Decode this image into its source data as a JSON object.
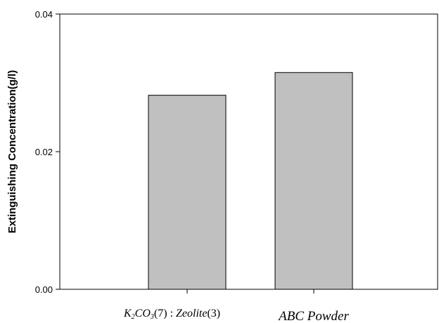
{
  "chart_data": {
    "type": "bar",
    "categories": [
      "K2CO3(7):Zeolite(3)",
      "ABC Powder"
    ],
    "values": [
      0.0282,
      0.0315
    ],
    "ylabel": "Extinguishing Concentration(g/l)",
    "xlabel": "",
    "ylim": [
      0,
      0.04
    ],
    "yticks": [
      "0.00",
      "0.02",
      "0.04"
    ],
    "grid": false,
    "bar_color": "#c0c0c0",
    "bar_edge_color": "#000000"
  },
  "category_labels": {
    "cat1": {
      "k": "K",
      "k_sub": "2",
      "co": "CO",
      "co_sub": "3",
      "rest_a": "(7)",
      "colon": " : ",
      "zeolite": "Zeolite",
      "rest_b": "(3)"
    },
    "cat2": {
      "text": "ABC Powder"
    }
  }
}
